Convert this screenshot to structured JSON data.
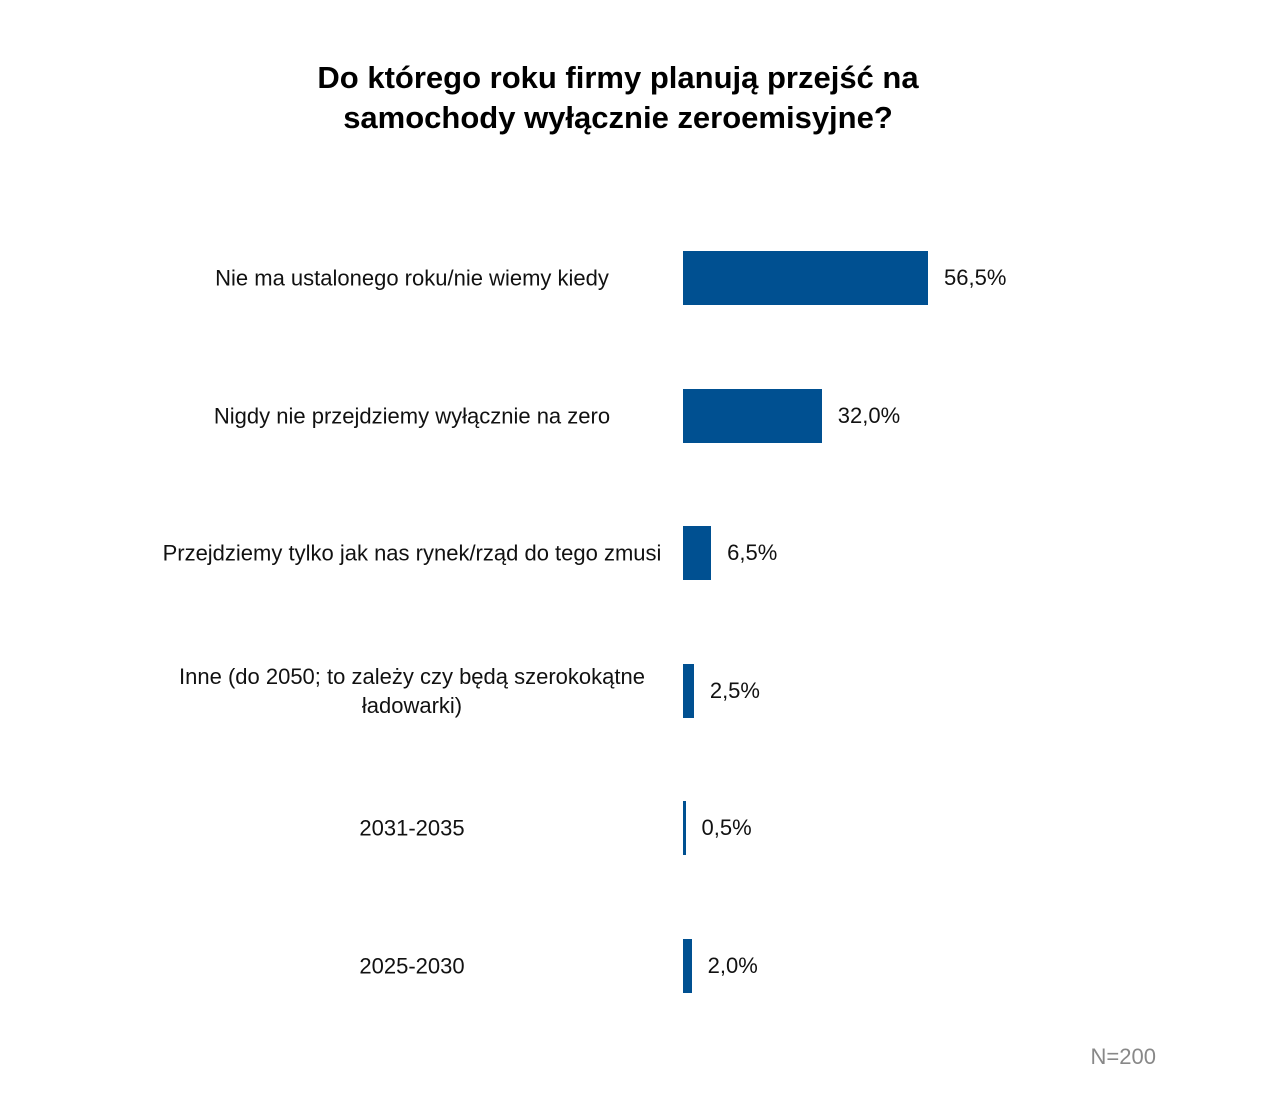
{
  "chart_data": {
    "type": "bar",
    "orientation": "horizontal",
    "title": "Do którego roku firmy planują przejść na samochody wyłącznie zeroemisyjne?",
    "categories": [
      "Nie ma ustalonego roku/nie wiemy kiedy",
      "Nigdy nie przejdziemy wyłącznie na zero",
      "Przejdziemy tylko jak nas rynek/rząd do tego zmusi",
      "Inne (do 2050; to zależy czy będą szerokokątne ładowarki)",
      "2031-2035",
      "2025-2030"
    ],
    "values": [
      56.5,
      32.0,
      6.5,
      2.5,
      0.5,
      2.0
    ],
    "value_labels": [
      "56,5%",
      "32,0%",
      "6,5%",
      "2,5%",
      "0,5%",
      "2,0%"
    ],
    "color": "#005091",
    "note": "N=200"
  }
}
